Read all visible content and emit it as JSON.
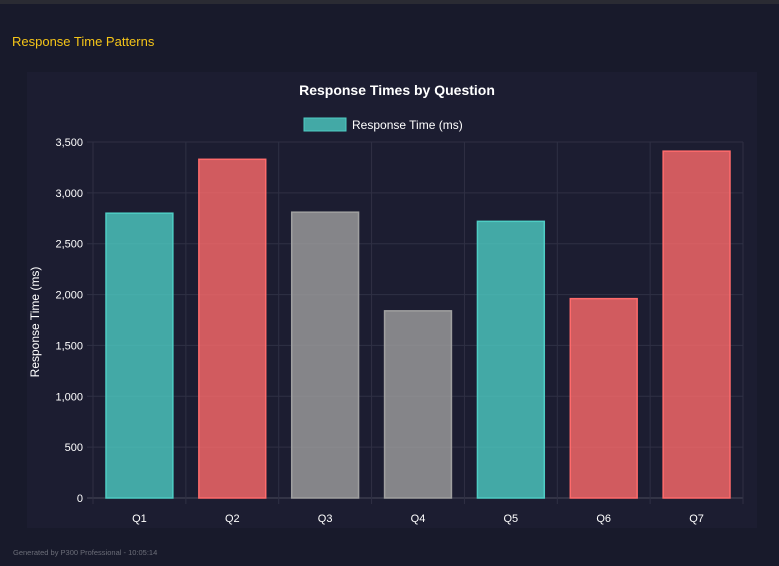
{
  "section_title": "Response Time Patterns",
  "footer": "Generated by P300 Professional - 10:05:14",
  "chart_data": {
    "type": "bar",
    "title": "Response Times by Question",
    "categories": [
      "Q1",
      "Q2",
      "Q3",
      "Q4",
      "Q5",
      "Q6",
      "Q7"
    ],
    "series": [
      {
        "name": "Response Time (ms)",
        "values": [
          2800,
          3330,
          2810,
          1840,
          2720,
          1960,
          3410
        ]
      }
    ],
    "bar_colors": [
      "#4ecdc4",
      "#ff6b6b",
      "#a0a0a0",
      "#a0a0a0",
      "#4ecdc4",
      "#ff6b6b",
      "#ff6b6b"
    ],
    "xlabel": "",
    "ylabel": "Response Time (ms)",
    "ylim": [
      0,
      3500
    ],
    "yticks": [
      "0",
      "500",
      "1,000",
      "1,500",
      "2,000",
      "2,500",
      "3,000",
      "3,500"
    ],
    "grid": true,
    "legend_position": "top"
  }
}
